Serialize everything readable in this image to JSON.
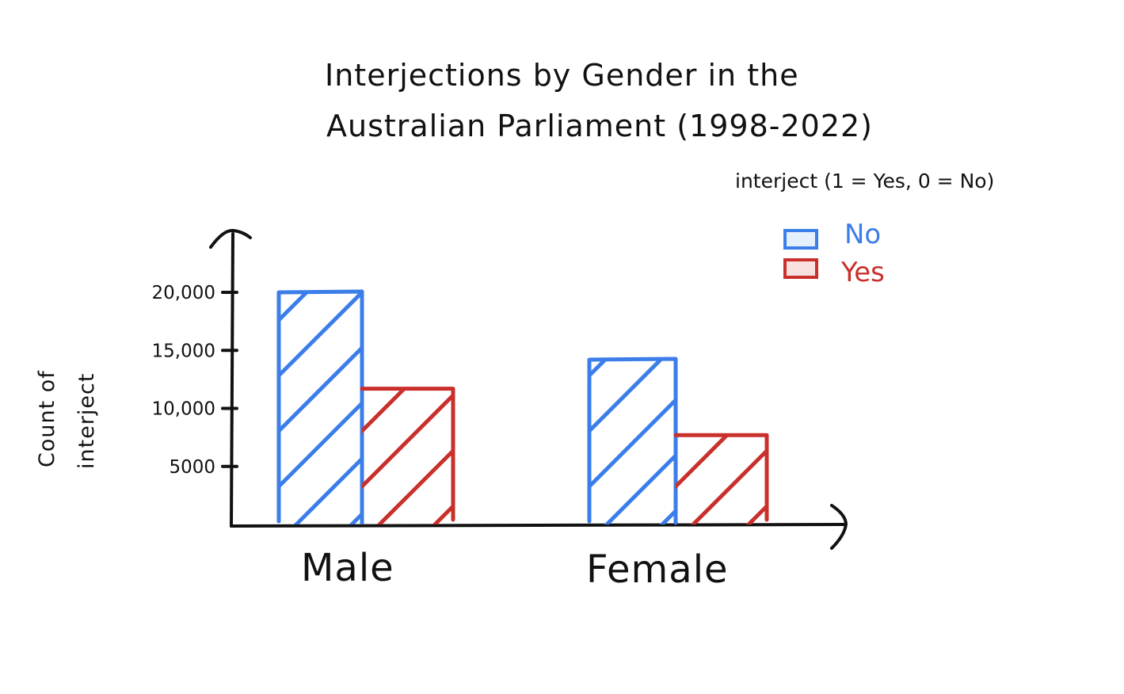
{
  "chart_data": {
    "type": "bar",
    "title": [
      "Interjections by Gender in the",
      "Australian Parliament (1998-2022)"
    ],
    "xlabel": "",
    "ylabel": [
      "Count of",
      "interject"
    ],
    "categories": [
      "Male",
      "Female"
    ],
    "ylim": [
      0,
      22500
    ],
    "yticks": [
      5000,
      10000,
      15000,
      20000
    ],
    "ytick_labels": [
      "5000",
      "10,000",
      "15,000",
      "20,000"
    ],
    "legend_title": "interject (1 = Yes, 0 = No)",
    "legend_position": "top-right",
    "series": [
      {
        "name": "No",
        "values": [
          20000,
          14200
        ],
        "color": "#3b7de9",
        "fill": "#e6effc"
      },
      {
        "name": "Yes",
        "values": [
          11700,
          7700
        ],
        "color": "#c9302c",
        "fill": "#f9e1e0"
      }
    ],
    "grid": false
  }
}
